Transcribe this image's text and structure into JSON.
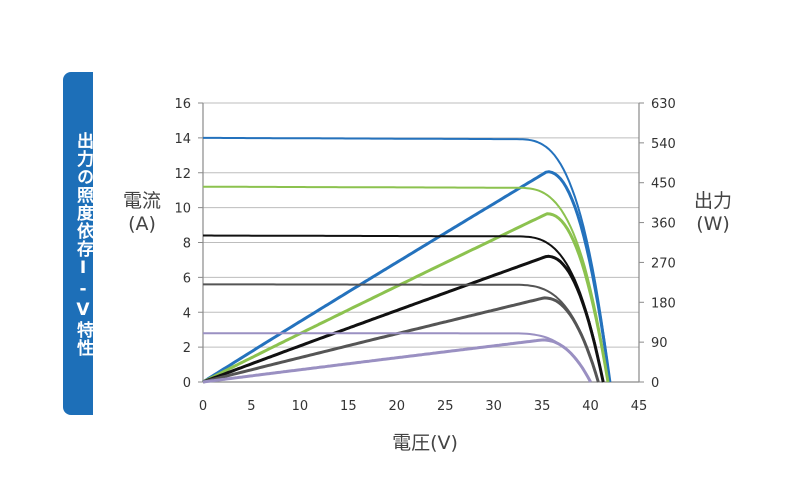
{
  "side_tab": {
    "title": "出力の照度依存I-V特性"
  },
  "labels": {
    "left_axis": "電流\n(A)",
    "right_axis": "出力\n(W)",
    "x_axis": "電圧(V)"
  },
  "chart_data": {
    "type": "line",
    "title": "",
    "xlabel": "電圧(V)",
    "ylabel": "電流 (A)",
    "y2label": "出力 (W)",
    "xlim": [
      0,
      45
    ],
    "ylim": [
      0,
      16
    ],
    "y2lim": [
      0,
      630
    ],
    "x_ticks": [
      0,
      5,
      10,
      15,
      20,
      25,
      30,
      35,
      40,
      45
    ],
    "y_ticks": [
      0,
      2,
      4,
      6,
      8,
      10,
      12,
      14,
      16
    ],
    "y2_ticks": [
      0,
      90,
      180,
      270,
      360,
      450,
      540,
      630
    ],
    "grid": "horizontal",
    "series": [
      {
        "color": "#2472bd",
        "isc": 14.0,
        "voc": 42.0,
        "vmp": 35.5,
        "imp": 13.4,
        "pmax": 475
      },
      {
        "color": "#8cc24f",
        "isc": 11.2,
        "voc": 41.8,
        "vmp": 35.5,
        "imp": 10.7,
        "pmax": 380
      },
      {
        "color": "#111111",
        "isc": 8.4,
        "voc": 41.3,
        "vmp": 35.5,
        "imp": 8.0,
        "pmax": 284
      },
      {
        "color": "#555555",
        "isc": 5.6,
        "voc": 40.8,
        "vmp": 35.2,
        "imp": 5.4,
        "pmax": 190
      },
      {
        "color": "#9a90c2",
        "isc": 2.8,
        "voc": 40.0,
        "vmp": 35.0,
        "imp": 2.7,
        "pmax": 95
      }
    ]
  }
}
